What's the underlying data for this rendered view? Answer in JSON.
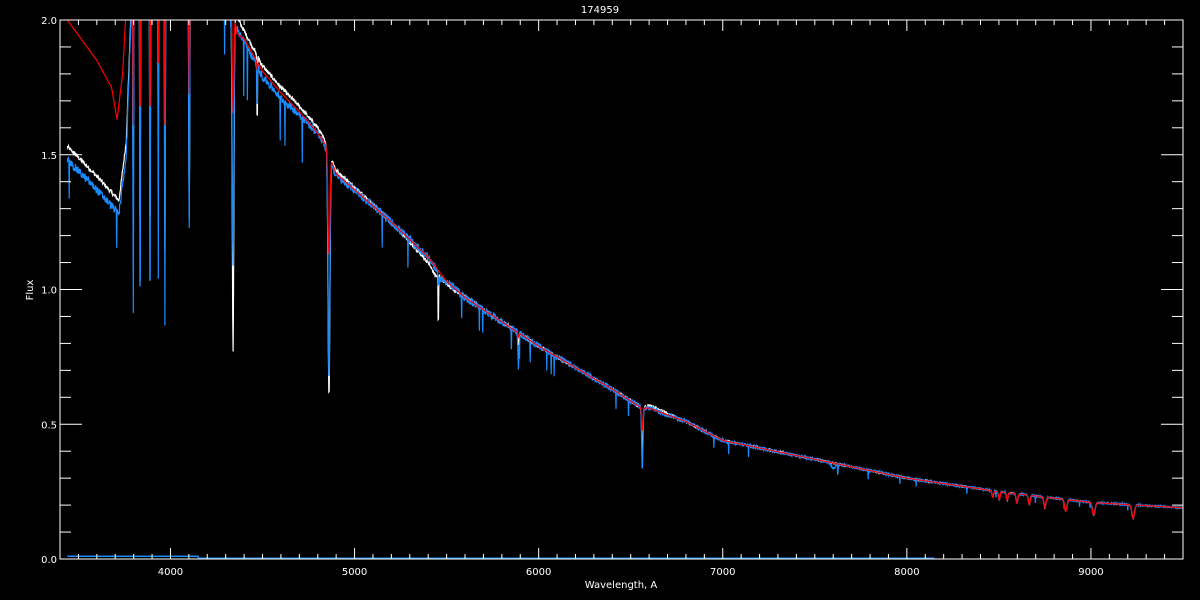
{
  "chart_data": {
    "type": "line",
    "title": "174959",
    "xlabel": "Wavelength, A",
    "ylabel": "Flux",
    "xlim": [
      3400,
      9500
    ],
    "ylim": [
      0.0,
      2.0
    ],
    "xticks": [
      "4000",
      "5000",
      "6000",
      "7000",
      "8000",
      "9000"
    ],
    "yticks": [
      "0.0",
      "0.5",
      "1.0",
      "1.5",
      "2.0"
    ],
    "x_minor_step": 100,
    "y_minor_step": 0.1,
    "grid": false,
    "background": "#000000",
    "series": [
      {
        "color": "#ffffff",
        "range": [
          3440,
          9500
        ],
        "continuum": [
          [
            3440,
            1.53
          ],
          [
            3500,
            1.49
          ],
          [
            3600,
            1.42
          ],
          [
            3680,
            1.36
          ],
          [
            3720,
            1.33
          ],
          [
            3760,
            1.55
          ],
          [
            3800,
            2.3
          ],
          [
            4200,
            2.3
          ],
          [
            4330,
            2.05
          ],
          [
            4400,
            1.96
          ],
          [
            4500,
            1.83
          ],
          [
            4600,
            1.75
          ],
          [
            4700,
            1.68
          ],
          [
            4800,
            1.6
          ],
          [
            4840,
            1.55
          ],
          [
            4900,
            1.44
          ],
          [
            5000,
            1.38
          ],
          [
            5200,
            1.25
          ],
          [
            5400,
            1.1
          ],
          [
            5440,
            1.05
          ],
          [
            5460,
            1.05
          ],
          [
            5500,
            1.02
          ],
          [
            5600,
            0.97
          ],
          [
            5800,
            0.88
          ],
          [
            6000,
            0.79
          ],
          [
            6200,
            0.71
          ],
          [
            6400,
            0.63
          ],
          [
            6560,
            0.56
          ],
          [
            6600,
            0.57
          ],
          [
            6800,
            0.51
          ],
          [
            7000,
            0.44
          ],
          [
            7500,
            0.37
          ],
          [
            8000,
            0.3
          ],
          [
            8500,
            0.25
          ],
          [
            9000,
            0.21
          ],
          [
            9500,
            0.19
          ]
        ]
      },
      {
        "color": "#1a8cff",
        "range": [
          3440,
          9500
        ],
        "continuum": [
          [
            3440,
            1.48
          ],
          [
            3500,
            1.44
          ],
          [
            3600,
            1.37
          ],
          [
            3680,
            1.31
          ],
          [
            3720,
            1.28
          ],
          [
            3760,
            1.5
          ],
          [
            3800,
            2.3
          ],
          [
            4200,
            2.3
          ],
          [
            4330,
            2.0
          ],
          [
            4400,
            1.92
          ],
          [
            4500,
            1.79
          ],
          [
            4600,
            1.71
          ],
          [
            4700,
            1.65
          ],
          [
            4800,
            1.58
          ],
          [
            4840,
            1.53
          ],
          [
            4900,
            1.42
          ],
          [
            5000,
            1.37
          ],
          [
            5200,
            1.25
          ],
          [
            5400,
            1.12
          ],
          [
            5440,
            1.08
          ],
          [
            5460,
            1.04
          ],
          [
            5500,
            1.03
          ],
          [
            5600,
            0.97
          ],
          [
            5800,
            0.88
          ],
          [
            6000,
            0.79
          ],
          [
            6200,
            0.71
          ],
          [
            6400,
            0.63
          ],
          [
            6560,
            0.56
          ],
          [
            6600,
            0.56
          ],
          [
            6800,
            0.51
          ],
          [
            7000,
            0.44
          ],
          [
            7500,
            0.37
          ],
          [
            8000,
            0.3
          ],
          [
            8500,
            0.25
          ],
          [
            9000,
            0.21
          ],
          [
            9500,
            0.19
          ]
        ]
      },
      {
        "color": "#ff0000",
        "range": [
          3440,
          9500
        ],
        "continuum": [
          [
            3440,
            2.0
          ],
          [
            3600,
            1.85
          ],
          [
            3680,
            1.75
          ],
          [
            3710,
            1.63
          ],
          [
            3740,
            1.8
          ],
          [
            3780,
            2.3
          ],
          [
            4300,
            2.3
          ],
          [
            4360,
            1.95
          ],
          [
            4400,
            1.93
          ],
          [
            4500,
            1.81
          ],
          [
            4600,
            1.73
          ],
          [
            4700,
            1.66
          ],
          [
            4800,
            1.58
          ],
          [
            4840,
            1.54
          ],
          [
            4900,
            1.43
          ],
          [
            5000,
            1.37
          ],
          [
            5200,
            1.25
          ],
          [
            5400,
            1.12
          ],
          [
            5500,
            1.03
          ],
          [
            5600,
            0.97
          ],
          [
            5800,
            0.88
          ],
          [
            6000,
            0.79
          ],
          [
            6200,
            0.71
          ],
          [
            6400,
            0.63
          ],
          [
            6560,
            0.56
          ],
          [
            6600,
            0.56
          ],
          [
            6800,
            0.51
          ],
          [
            7000,
            0.44
          ],
          [
            7500,
            0.37
          ],
          [
            8000,
            0.3
          ],
          [
            8500,
            0.25
          ],
          [
            9000,
            0.21
          ],
          [
            9500,
            0.19
          ]
        ]
      },
      {
        "color": "#1a8cff",
        "range": [
          3440,
          8150
        ],
        "continuum": [
          [
            3440,
            0.01
          ],
          [
            4150,
            0.01
          ],
          [
            4151,
            0.003
          ],
          [
            8150,
            0.003
          ]
        ]
      }
    ],
    "absorption_lines": [
      {
        "center": 3798,
        "width": 3,
        "depth": [
          0.45,
          0.3,
          0.6
        ]
      },
      {
        "center": 3835,
        "width": 3,
        "depth": [
          0.5,
          0.3,
          0.62
        ]
      },
      {
        "center": 3889,
        "width": 3,
        "depth": [
          0.5,
          0.3,
          0.62
        ]
      },
      {
        "center": 3934,
        "width": 2,
        "depth": [
          0.4,
          0.2,
          0.55
        ]
      },
      {
        "center": 3970,
        "width": 3,
        "depth": [
          0.5,
          0.3,
          0.62
        ]
      },
      {
        "center": 4102,
        "width": 4,
        "depth": [
          0.45,
          0.25,
          0.47
        ]
      },
      {
        "center": 4340,
        "width": 6,
        "depth": [
          0.62,
          0.2,
          0.45
        ]
      },
      {
        "center": 4471,
        "width": 2,
        "depth": [
          0.15,
          0.02,
          0.1
        ]
      },
      {
        "center": 4861,
        "width": 7,
        "depth": [
          0.6,
          0.25,
          0.55
        ]
      },
      {
        "center": 5455,
        "width": 2,
        "depth": [
          0.2,
          0.0,
          0.05
        ]
      },
      {
        "center": 5890,
        "width": 4,
        "depth": [
          0.05,
          0.02,
          0.15
        ]
      },
      {
        "center": 6563,
        "width": 5,
        "depth": [
          0.3,
          0.15,
          0.42
        ]
      },
      {
        "center": 7600,
        "width": 15,
        "depth": [
          0.0,
          0.0,
          0.05
        ]
      },
      {
        "center": 8467,
        "width": 6,
        "depth": [
          0.1,
          0.1,
          0.1
        ]
      },
      {
        "center": 8502,
        "width": 6,
        "depth": [
          0.12,
          0.12,
          0.12
        ]
      },
      {
        "center": 8545,
        "width": 6,
        "depth": [
          0.12,
          0.12,
          0.12
        ]
      },
      {
        "center": 8598,
        "width": 7,
        "depth": [
          0.14,
          0.14,
          0.14
        ]
      },
      {
        "center": 8665,
        "width": 7,
        "depth": [
          0.15,
          0.15,
          0.15
        ]
      },
      {
        "center": 8750,
        "width": 8,
        "depth": [
          0.17,
          0.17,
          0.17
        ]
      },
      {
        "center": 8863,
        "width": 9,
        "depth": [
          0.2,
          0.2,
          0.2
        ]
      },
      {
        "center": 9015,
        "width": 10,
        "depth": [
          0.22,
          0.22,
          0.22
        ]
      },
      {
        "center": 9229,
        "width": 10,
        "depth": [
          0.25,
          0.25,
          0.25
        ]
      }
    ]
  }
}
